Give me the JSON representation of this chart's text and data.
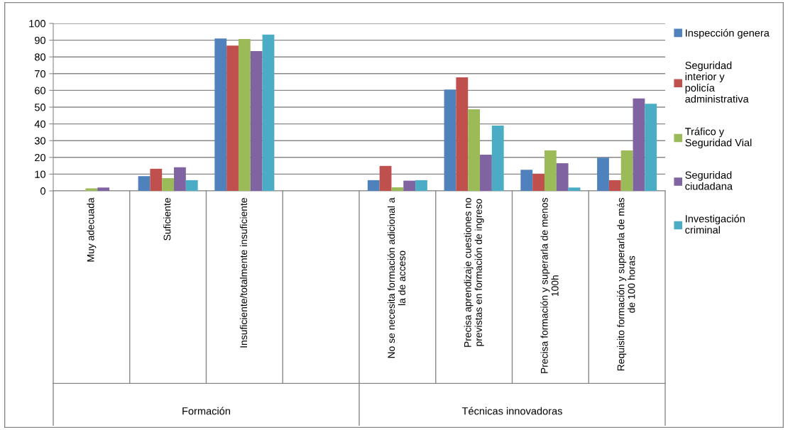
{
  "chart_data": {
    "type": "bar",
    "categories": [
      "Muy adecuada",
      "Suficiente",
      "Insuficiente/totalmente insuficiente",
      null,
      "No se necesita formación adicional a la de acceso",
      "Precisa aprendizaje cuestiones no previstas en formación de ingreso",
      "Precisa formación y superarla de menos 100h",
      "Requisito formación y superarla de más de 100 horas"
    ],
    "series": [
      {
        "name": "Inspección genera",
        "color": "#4f81bd",
        "values": [
          0,
          8.8,
          91,
          null,
          6.4,
          60.5,
          12.6,
          19.8
        ]
      },
      {
        "name": "Seguridad interior y policía administrativa",
        "color": "#c0504d",
        "values": [
          0,
          13.2,
          86.8,
          null,
          14.9,
          67.8,
          10.2,
          6.4
        ]
      },
      {
        "name": "Tráfico y Seguridad Vial",
        "color": "#9bbb59",
        "values": [
          1.5,
          7.6,
          90.7,
          null,
          2.1,
          48.7,
          24.2,
          24.2
        ]
      },
      {
        "name": "Seguridad ciudadana",
        "color": "#8064a2",
        "values": [
          2,
          14.1,
          83.5,
          null,
          6.1,
          21.6,
          16.5,
          55.2
        ]
      },
      {
        "name": "Investigación criminal",
        "color": "#4bacc6",
        "values": [
          0,
          6.4,
          93.3,
          null,
          6.4,
          39.0,
          2.0,
          52.0
        ]
      }
    ],
    "annotations": [
      "Formación",
      "Técnicas innovadoras"
    ],
    "ylim": [
      0,
      100
    ],
    "yticks": [
      0,
      10,
      20,
      30,
      40,
      50,
      60,
      70,
      80,
      90,
      100
    ],
    "grid": "y",
    "legend": "right"
  }
}
